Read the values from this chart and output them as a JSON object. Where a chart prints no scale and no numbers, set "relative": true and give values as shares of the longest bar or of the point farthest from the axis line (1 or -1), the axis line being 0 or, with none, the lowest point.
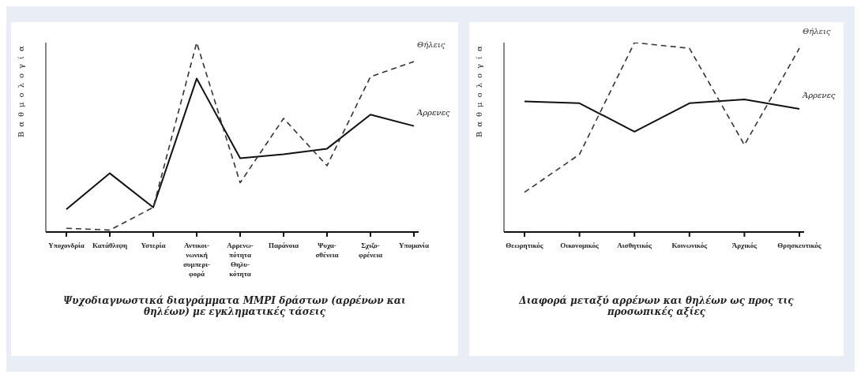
{
  "chart_data": [
    {
      "type": "line",
      "relative": true,
      "ylabel": "Βαθμολογία",
      "title": "Ψυχοδιαγνωστικά διαγράμματα MMPI δράστων (αρρένων και θηλέων) με εγκληματικές τάσεις",
      "categories": [
        "Υποχονδρία",
        "Κατάθλιψη",
        "Υστερία",
        "Αντικοι-νωνική συμπερι-φορά",
        "Αρρενω-πότητα Θηλυ-κότητα",
        "Παράνοια",
        "Ψυχα-σθένεια",
        "Σχιζο-φρένεια",
        "Υπομανία"
      ],
      "legend": false,
      "marker": "none",
      "series": [
        {
          "name": "Άρρενες",
          "color": "#111111",
          "line_style": "solid",
          "values": [
            0.12,
            0.31,
            0.13,
            0.81,
            0.39,
            0.41,
            0.44,
            0.62,
            0.56
          ]
        },
        {
          "name": "Θήλεις",
          "color": "#333333",
          "line_style": "dashed",
          "values": [
            0.02,
            0.01,
            0.13,
            1,
            0.26,
            0.6,
            0.35,
            0.82,
            0.9
          ]
        }
      ]
    },
    {
      "type": "line",
      "relative": true,
      "ylabel": "Βαθμολογία",
      "title": "Διαφορά μεταξύ αρρένων και θηλέων ως προς τις προσωπικές αξίες",
      "categories": [
        "Θεωρητικός",
        "Οικονομικός",
        "Αισθητικός",
        "Κοινωνικός",
        "Άρχικός",
        "Θρησκευτικός"
      ],
      "legend": false,
      "marker": "none",
      "series": [
        {
          "name": "Άρρενες",
          "color": "#111111",
          "line_style": "solid",
          "values": [
            0.69,
            0.68,
            0.53,
            0.68,
            0.7,
            0.65
          ]
        },
        {
          "name": "Θήλεις",
          "color": "#333333",
          "line_style": "dashed",
          "values": [
            0.21,
            0.41,
            1,
            0.97,
            0.46,
            0.97
          ]
        }
      ]
    }
  ]
}
